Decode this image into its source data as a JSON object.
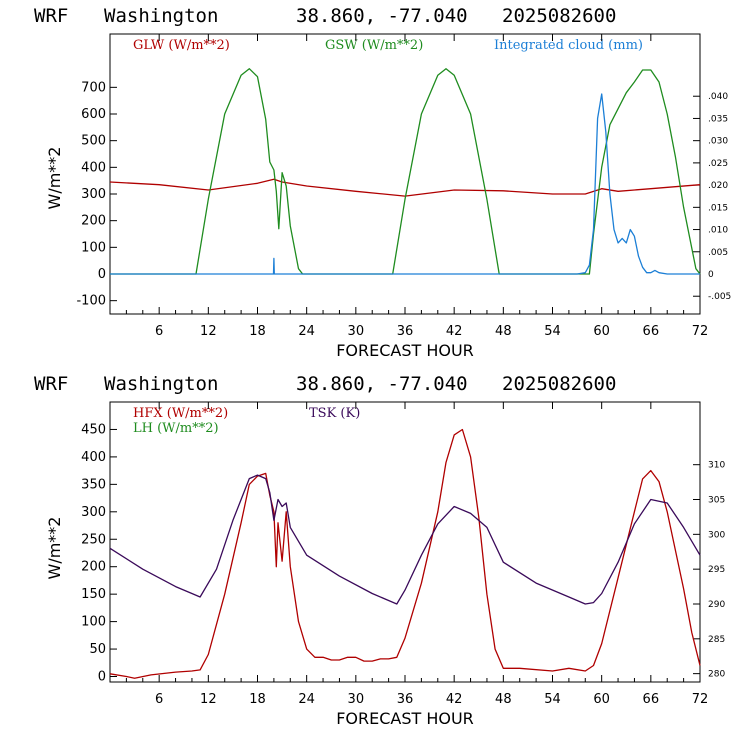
{
  "chart_data": [
    {
      "type": "line",
      "title_parts": [
        "WRF",
        "Washington",
        "38.860, -77.040",
        "2025082600"
      ],
      "xlabel": "FORECAST HOUR",
      "ylabel": "W/m**2",
      "xlim": [
        0,
        72
      ],
      "ylim": [
        -150,
        900
      ],
      "x_ticks": [
        "6",
        "12",
        "18",
        "24",
        "30",
        "36",
        "42",
        "48",
        "54",
        "60",
        "66",
        "72"
      ],
      "y_ticks": [
        "-100",
        "0",
        "100",
        "200",
        "300",
        "400",
        "500",
        "600",
        "700"
      ],
      "y2lim": [
        -0.009,
        0.054
      ],
      "y2_ticks": [
        "-.005",
        "0",
        ".005",
        ".010",
        ".015",
        ".020",
        ".025",
        ".030",
        ".035",
        ".040"
      ],
      "series": [
        {
          "name": "GLW (W/m**2)",
          "color": "#b00000",
          "axis": "left",
          "x": [
            0,
            6,
            12,
            18,
            20,
            21,
            24,
            30,
            36,
            42,
            48,
            54,
            58,
            60,
            62,
            66,
            72
          ],
          "y": [
            345,
            335,
            315,
            340,
            355,
            345,
            330,
            310,
            292,
            315,
            312,
            300,
            300,
            320,
            310,
            320,
            335
          ]
        },
        {
          "name": "GSW (W/m**2)",
          "color": "#1f8c1f",
          "axis": "left",
          "x": [
            0,
            10.5,
            12,
            14,
            16,
            17,
            18,
            19,
            19.5,
            20,
            20.3,
            20.6,
            21,
            21.5,
            22,
            23,
            23.5,
            24,
            34.5,
            36,
            38,
            40,
            41,
            42,
            44,
            46,
            47.5,
            58.5,
            59,
            60,
            61,
            62,
            63,
            64,
            65,
            66,
            67,
            68,
            69,
            70,
            71.5,
            72
          ],
          "y": [
            0,
            0,
            280,
            600,
            745,
            770,
            740,
            580,
            420,
            390,
            310,
            170,
            380,
            330,
            180,
            20,
            0,
            0,
            0,
            280,
            600,
            745,
            770,
            745,
            600,
            280,
            0,
            0,
            150,
            400,
            560,
            620,
            680,
            720,
            765,
            765,
            720,
            600,
            440,
            250,
            20,
            0
          ]
        },
        {
          "name": "Integrated cloud (mm)",
          "color": "#1c7fd6",
          "axis": "right",
          "x": [
            0,
            19.95,
            20,
            20.05,
            57,
            58,
            58.5,
            59,
            59.5,
            60,
            60.5,
            61,
            61.5,
            62,
            62.5,
            63,
            63.5,
            64,
            64.5,
            65,
            65.5,
            66,
            66.5,
            67,
            68,
            72
          ],
          "y": [
            0,
            0,
            0.0035,
            0,
            0,
            0.0003,
            0.002,
            0.01,
            0.035,
            0.0405,
            0.032,
            0.018,
            0.01,
            0.007,
            0.008,
            0.007,
            0.01,
            0.0085,
            0.004,
            0.0015,
            0.0003,
            0.0003,
            0.0008,
            0.0003,
            0,
            0
          ]
        }
      ]
    },
    {
      "type": "line",
      "title_parts": [
        "WRF",
        "Washington",
        "38.860, -77.040",
        "2025082600"
      ],
      "xlabel": "FORECAST HOUR",
      "ylabel": "W/m**2",
      "xlim": [
        0,
        72
      ],
      "ylim": [
        -10,
        500
      ],
      "x_ticks": [
        "6",
        "12",
        "18",
        "24",
        "30",
        "36",
        "42",
        "48",
        "54",
        "60",
        "66",
        "72"
      ],
      "y_ticks": [
        "0",
        "50",
        "100",
        "150",
        "200",
        "250",
        "300",
        "350",
        "400",
        "450"
      ],
      "y2lim": [
        278.8,
        319
      ],
      "y2_ticks": [
        "280",
        "285",
        "290",
        "295",
        "300",
        "305",
        "310"
      ],
      "series": [
        {
          "name": "HFX (W/m**2)",
          "color": "#b00000",
          "axis": "left",
          "x": [
            0,
            2,
            3,
            5,
            8,
            10,
            11,
            12,
            14,
            16,
            17,
            18,
            19,
            19.5,
            20,
            20.3,
            20.5,
            21,
            21.5,
            22,
            23,
            24,
            25,
            26,
            27,
            28,
            29,
            30,
            31,
            32,
            33,
            34,
            35,
            36,
            38,
            40,
            41,
            42,
            43,
            44,
            45,
            46,
            47,
            48,
            50,
            54,
            56,
            58,
            59,
            60,
            62,
            64,
            65,
            66,
            67,
            68,
            70,
            71,
            72
          ],
          "y": [
            5,
            0,
            -3,
            3,
            8,
            10,
            12,
            40,
            150,
            280,
            350,
            365,
            370,
            330,
            300,
            200,
            280,
            210,
            300,
            200,
            100,
            50,
            35,
            35,
            30,
            30,
            35,
            35,
            28,
            28,
            32,
            32,
            35,
            70,
            170,
            300,
            390,
            440,
            450,
            400,
            290,
            150,
            50,
            15,
            15,
            10,
            15,
            10,
            20,
            60,
            180,
            300,
            360,
            375,
            355,
            300,
            160,
            80,
            20
          ]
        },
        {
          "name": "TSK (K)",
          "color": "#3a0a5a",
          "axis": "right",
          "x": [
            0,
            4,
            8,
            10,
            11,
            13,
            15,
            17,
            18,
            19,
            19.5,
            20,
            20.5,
            21,
            21.5,
            22,
            24,
            28,
            32,
            34,
            35,
            36,
            38,
            40,
            42,
            44,
            46,
            48,
            52,
            56,
            58,
            59,
            60,
            62,
            64,
            66,
            68,
            70,
            72
          ],
          "y": [
            298,
            295,
            292.5,
            291.5,
            291,
            295,
            302,
            308,
            308.5,
            308,
            306,
            302,
            305,
            304,
            304.5,
            301,
            297,
            294,
            291.5,
            290.5,
            290,
            292,
            297,
            301.5,
            304,
            303,
            301,
            296,
            293,
            291,
            290,
            290.2,
            291.5,
            296,
            301.5,
            305,
            304.5,
            301,
            297
          ]
        }
      ]
    }
  ],
  "charts_text": [
    {
      "legend": [
        {
          "text": "GLW (W/m**2)",
          "color": "#b00000"
        },
        {
          "text": "GSW (W/m**2)",
          "color": "#1f8c1f"
        },
        {
          "text": "Integrated cloud (mm)",
          "color": "#1c7fd6"
        }
      ]
    },
    {
      "legend": [
        {
          "text": "HFX (W/m**2)",
          "color": "#b00000"
        },
        {
          "text": "LH  (W/m**2)",
          "color": "#1f8c1f"
        },
        {
          "text": "TSK (K)",
          "color": "#3a0a5a"
        }
      ]
    }
  ]
}
